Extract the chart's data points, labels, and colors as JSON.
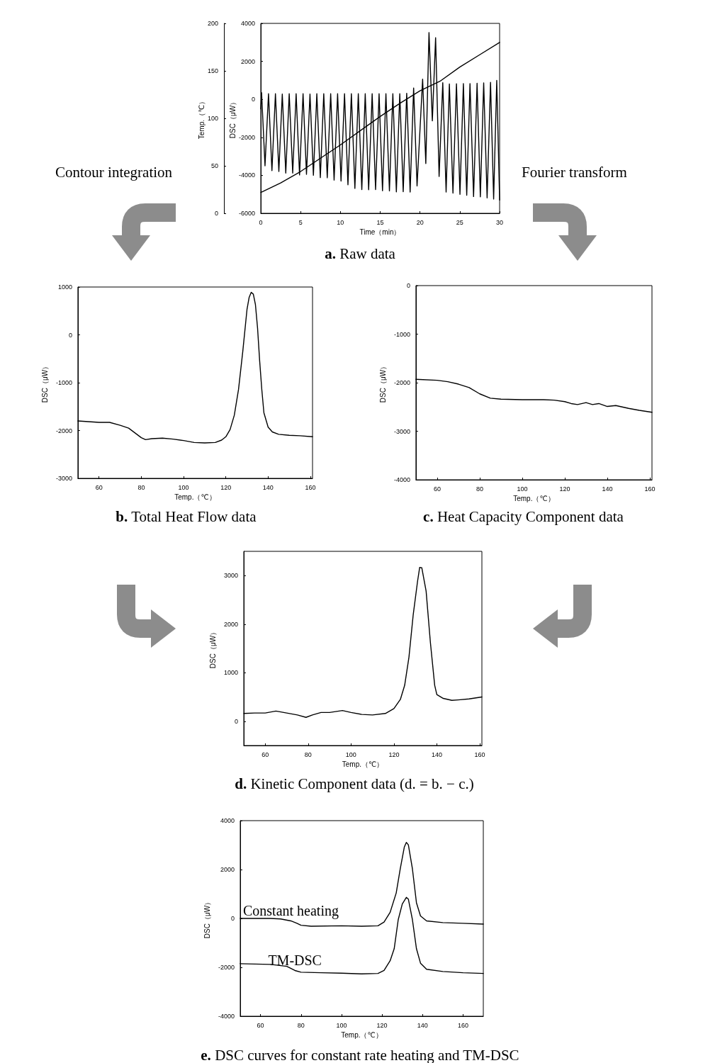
{
  "chart_data": [
    {
      "type": "line",
      "title": "a. Raw data",
      "xlabel": "Time（min）",
      "ylabel": "DSC（μW）",
      "y2label": "Temp.（℃）",
      "annotations": [
        "Contour integration",
        "Fourier transform"
      ],
      "xlim": [
        0,
        30
      ],
      "xticks": [
        0,
        5,
        10,
        15,
        20,
        25,
        30
      ],
      "ylim": [
        -6000,
        4000
      ],
      "yticks": [
        -6000,
        -4000,
        -2000,
        0,
        2000,
        4000
      ],
      "y2lim": [
        0,
        200
      ],
      "y2ticks": [
        0,
        50,
        100,
        150,
        200
      ],
      "marker": "none",
      "series": [
        {
          "color": "#000000",
          "x": [
            0,
            0.1,
            0.53,
            0.97,
            1.4,
            1.84,
            2.27,
            2.7,
            3.14,
            3.57,
            4.01,
            4.44,
            4.87,
            5.31,
            5.74,
            6.18,
            6.61,
            7.04,
            7.48,
            7.91,
            8.35,
            8.78,
            9.21,
            9.65,
            10.08,
            10.52,
            10.95,
            11.38,
            11.82,
            12.25,
            12.69,
            13.12,
            13.55,
            13.99,
            14.42,
            14.86,
            15.29,
            15.72,
            16.16,
            16.59,
            17.03,
            17.46,
            17.89,
            18.33,
            18.76,
            19.2,
            19.63,
            20.33,
            20.73,
            21.13,
            21.55,
            21.96,
            22.4,
            22.86,
            23.28,
            23.69,
            24.14,
            24.58,
            25.02,
            25.45,
            25.87,
            26.28,
            26.73,
            27.17,
            27.58,
            28.0,
            28.43,
            28.86,
            29.25,
            29.64,
            30.0
          ],
          "values": [
            -500,
            350,
            -3500,
            300,
            -3750,
            300,
            -3800,
            280,
            -3880,
            300,
            -3880,
            300,
            -3980,
            300,
            -3950,
            280,
            -4000,
            300,
            -4120,
            300,
            -4130,
            300,
            -4250,
            300,
            -4300,
            300,
            -4500,
            300,
            -4690,
            300,
            -4750,
            300,
            -4760,
            300,
            -4750,
            300,
            -4810,
            300,
            -4820,
            300,
            -4870,
            300,
            -4860,
            320,
            -4880,
            600,
            -4560,
            1060,
            -3380,
            3520,
            -1130,
            3250,
            -4060,
            880,
            -4880,
            810,
            -4940,
            820,
            -5000,
            830,
            -5050,
            830,
            -5120,
            850,
            -5130,
            870,
            -5190,
            900,
            -5250,
            1000,
            -5300
          ]
        },
        {
          "color": "#000000",
          "axis": "y2",
          "x": [
            0,
            2.5,
            5,
            7.5,
            10,
            12.5,
            15,
            17.5,
            20,
            22.5,
            25,
            27.5,
            30
          ],
          "values": [
            22,
            32,
            44,
            58,
            72,
            87,
            102,
            116,
            129,
            139,
            154,
            167,
            180
          ]
        }
      ]
    },
    {
      "type": "line",
      "title": "b. Total Heat Flow data",
      "xlabel": "Temp.（℃）",
      "ylabel": "DSC（μW）",
      "xlim": [
        50,
        161
      ],
      "xticks": [
        60,
        80,
        100,
        120,
        140,
        160
      ],
      "ylim": [
        -3000,
        1000
      ],
      "yticks": [
        -3000,
        -2000,
        -1000,
        0,
        1000
      ],
      "marker": "none",
      "series": [
        {
          "color": "#000000",
          "x": [
            50,
            60,
            65,
            70,
            74,
            77,
            80,
            82,
            85,
            90,
            95,
            100,
            105,
            110,
            115,
            118,
            120,
            122,
            124,
            126,
            128,
            130,
            131,
            132,
            133,
            134,
            135,
            136,
            137,
            138,
            140,
            142,
            145,
            150,
            155,
            161
          ],
          "values": [
            -1800,
            -1830,
            -1830,
            -1890,
            -1950,
            -2050,
            -2150,
            -2190,
            -2170,
            -2160,
            -2180,
            -2210,
            -2250,
            -2260,
            -2250,
            -2200,
            -2130,
            -1980,
            -1680,
            -1140,
            -350,
            530,
            780,
            890,
            850,
            630,
            140,
            -550,
            -1140,
            -1630,
            -1930,
            -2030,
            -2080,
            -2100,
            -2110,
            -2130
          ]
        }
      ]
    },
    {
      "type": "line",
      "title": "c. Heat Capacity Component data",
      "xlabel": "Temp.（℃）",
      "ylabel": "DSC（μW）",
      "xlim": [
        50,
        161
      ],
      "xticks": [
        60,
        80,
        100,
        120,
        140,
        160
      ],
      "ylim": [
        -4000,
        0
      ],
      "yticks": [
        -4000,
        -3000,
        -2000,
        -1000,
        0
      ],
      "marker": "none",
      "series": [
        {
          "color": "#000000",
          "x": [
            50,
            60,
            65,
            70,
            75,
            80,
            85,
            90,
            100,
            110,
            115,
            120,
            123,
            126,
            130,
            133,
            136,
            140,
            144,
            150,
            155,
            161
          ],
          "values": [
            -1930,
            -1950,
            -1980,
            -2030,
            -2100,
            -2230,
            -2320,
            -2340,
            -2350,
            -2350,
            -2360,
            -2390,
            -2430,
            -2450,
            -2410,
            -2450,
            -2430,
            -2490,
            -2470,
            -2530,
            -2570,
            -2610
          ]
        }
      ]
    },
    {
      "type": "line",
      "title": "d. Kinetic Component data (d. = b. − c.)",
      "xlabel": "Temp.（℃）",
      "ylabel": "DSC（μW）",
      "xlim": [
        50,
        161
      ],
      "xticks": [
        60,
        80,
        100,
        120,
        140,
        160
      ],
      "ylim": [
        -500,
        3500
      ],
      "yticks": [
        0,
        1000,
        2000,
        3000
      ],
      "marker": "none",
      "series": [
        {
          "color": "#000000",
          "x": [
            50,
            55,
            60,
            65,
            70,
            75,
            79,
            82,
            86,
            90,
            96,
            100,
            105,
            110,
            116,
            120,
            123,
            125,
            127,
            129,
            131,
            132,
            133,
            135,
            137,
            139,
            140,
            143,
            147,
            150,
            155,
            161
          ],
          "values": [
            160,
            170,
            170,
            210,
            170,
            130,
            80,
            130,
            180,
            180,
            220,
            180,
            140,
            130,
            160,
            260,
            450,
            740,
            1320,
            2200,
            2880,
            3170,
            3160,
            2680,
            1620,
            740,
            550,
            470,
            430,
            440,
            460,
            500
          ]
        }
      ]
    },
    {
      "type": "line",
      "title": "e. DSC curves for constant rate heating and TM-DSC",
      "xlabel": "Temp.（℃）",
      "ylabel": "DSC（μW）",
      "xlim": [
        50,
        170
      ],
      "xticks": [
        60,
        80,
        100,
        120,
        140,
        160
      ],
      "ylim": [
        -4000,
        4000
      ],
      "yticks": [
        -4000,
        -2000,
        0,
        2000,
        4000
      ],
      "marker": "none",
      "series": [
        {
          "name": "Constant heating",
          "color": "#000000",
          "x": [
            50,
            65,
            70,
            75,
            78,
            80,
            85,
            100,
            110,
            118,
            121,
            124,
            127,
            129,
            131,
            132,
            133,
            135,
            137,
            139,
            142,
            150,
            160,
            170
          ],
          "values": [
            0,
            0,
            -20,
            -100,
            -200,
            -280,
            -320,
            -300,
            -320,
            -300,
            -150,
            250,
            1040,
            2030,
            2920,
            3110,
            3010,
            2030,
            640,
            100,
            -100,
            -170,
            -200,
            -230
          ]
        },
        {
          "name": "TM-DSC",
          "color": "#000000",
          "x": [
            50,
            65,
            73,
            77,
            80,
            90,
            100,
            110,
            118,
            121,
            124,
            126,
            128,
            130,
            132,
            133,
            135,
            137,
            139,
            142,
            150,
            160,
            170
          ],
          "values": [
            -1850,
            -1880,
            -1960,
            -2130,
            -2200,
            -2220,
            -2240,
            -2270,
            -2250,
            -2130,
            -1730,
            -1240,
            -50,
            590,
            860,
            790,
            -50,
            -1240,
            -1830,
            -2080,
            -2170,
            -2220,
            -2250
          ]
        }
      ]
    }
  ]
}
